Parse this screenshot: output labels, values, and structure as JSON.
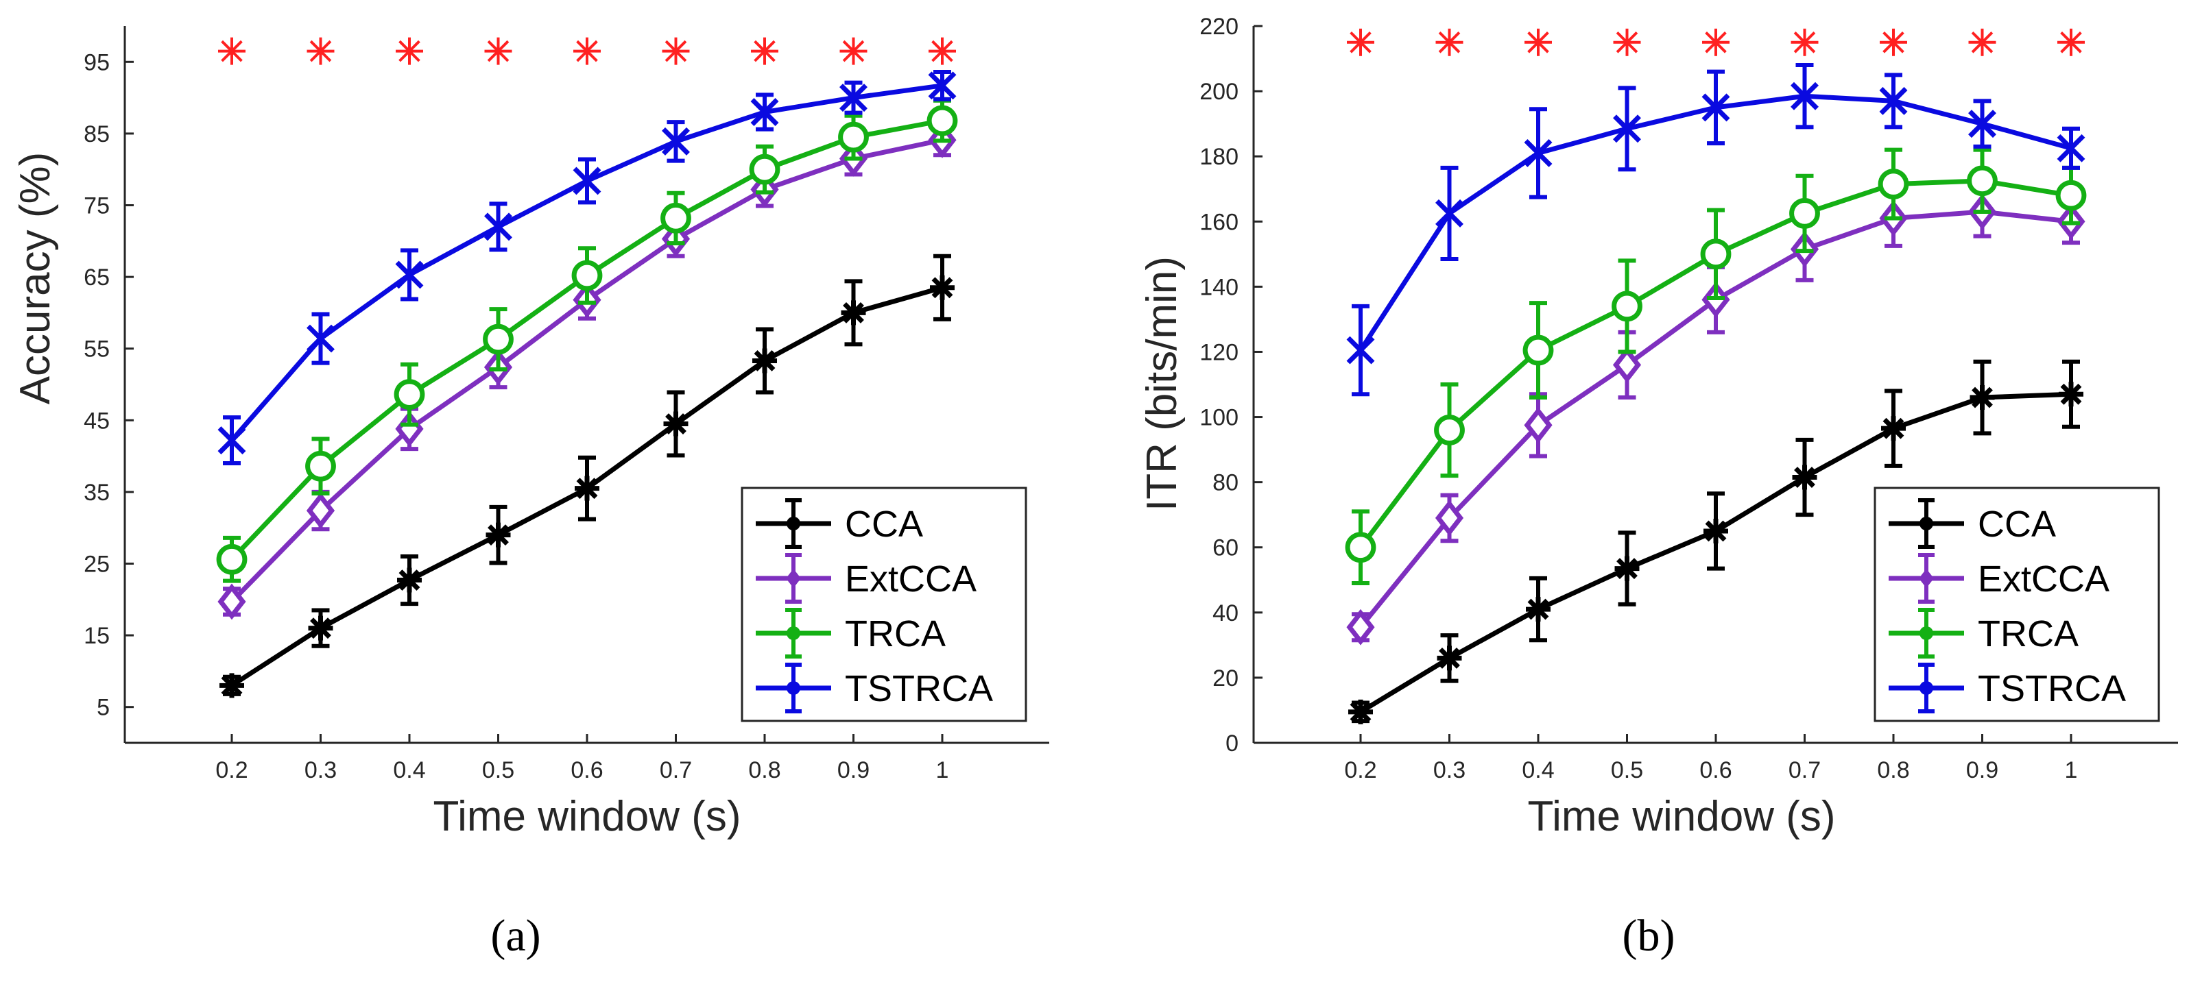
{
  "chart_data": [
    {
      "type": "line",
      "panel_label": "(a)",
      "xlabel": "Time window (s)",
      "ylabel": "Accuracy (%)",
      "x": [
        0.2,
        0.3,
        0.4,
        0.5,
        0.6,
        0.7,
        0.8,
        0.9,
        1.0
      ],
      "xticks": [
        "0.2",
        "0.3",
        "0.4",
        "0.5",
        "0.6",
        "0.7",
        "0.8",
        "0.9",
        "1"
      ],
      "ylim": [
        0,
        100
      ],
      "yticks": [
        "5",
        "15",
        "25",
        "35",
        "45",
        "55",
        "65",
        "75",
        "85",
        "95"
      ],
      "significance_marker": "*",
      "significance_y": 96.5,
      "legend": {
        "position": "bottom-right"
      },
      "series": [
        {
          "name": "CCA",
          "color": "#000000",
          "marker": "asterisk",
          "values": [
            8.0,
            16.0,
            22.7,
            29.0,
            35.5,
            44.5,
            53.3,
            60.0,
            63.5
          ],
          "errors": [
            1.2,
            2.5,
            3.3,
            3.9,
            4.3,
            4.4,
            4.4,
            4.4,
            4.4
          ]
        },
        {
          "name": "ExtCCA",
          "color": "#7e2fbf",
          "marker": "diamond",
          "values": [
            19.7,
            32.4,
            43.8,
            52.4,
            61.8,
            70.3,
            77.2,
            81.5,
            84.1
          ],
          "errors": [
            1.8,
            2.6,
            2.8,
            2.8,
            2.6,
            2.4,
            2.3,
            2.2,
            2.1
          ]
        },
        {
          "name": "TRCA",
          "color": "#14b014",
          "marker": "circle",
          "values": [
            25.6,
            38.6,
            48.6,
            56.3,
            65.2,
            73.2,
            80.0,
            84.5,
            86.8
          ],
          "errors": [
            3.0,
            3.8,
            4.2,
            4.2,
            3.8,
            3.5,
            3.2,
            3.0,
            2.8
          ]
        },
        {
          "name": "TSTRCA",
          "color": "#0a0ae0",
          "marker": "x",
          "values": [
            42.2,
            56.4,
            65.3,
            72.0,
            78.4,
            83.9,
            88.0,
            90.0,
            91.7
          ],
          "errors": [
            3.2,
            3.4,
            3.4,
            3.2,
            3.0,
            2.7,
            2.4,
            2.1,
            1.9
          ]
        }
      ]
    },
    {
      "type": "line",
      "panel_label": "(b)",
      "xlabel": "Time window (s)",
      "ylabel": "ITR (bits/min)",
      "x": [
        0.2,
        0.3,
        0.4,
        0.5,
        0.6,
        0.7,
        0.8,
        0.9,
        1.0
      ],
      "xticks": [
        "0.2",
        "0.3",
        "0.4",
        "0.5",
        "0.6",
        "0.7",
        "0.8",
        "0.9",
        "1"
      ],
      "ylim": [
        0,
        220
      ],
      "yticks": [
        "0",
        "20",
        "40",
        "60",
        "80",
        "100",
        "120",
        "140",
        "160",
        "180",
        "200",
        "220"
      ],
      "significance_marker": "*",
      "significance_y": 215,
      "legend": {
        "position": "bottom-right"
      },
      "series": [
        {
          "name": "CCA",
          "color": "#000000",
          "marker": "asterisk",
          "values": [
            9.5,
            26.0,
            41.0,
            53.5,
            65.0,
            81.5,
            96.5,
            106.0,
            107.0
          ],
          "errors": [
            2.8,
            7.0,
            9.5,
            11.0,
            11.5,
            11.5,
            11.5,
            11.0,
            10.0
          ]
        },
        {
          "name": "ExtCCA",
          "color": "#7e2fbf",
          "marker": "diamond",
          "values": [
            35.5,
            69.0,
            97.5,
            116.0,
            136.0,
            151.5,
            161.0,
            163.0,
            160.0
          ],
          "errors": [
            4.0,
            7.0,
            9.5,
            10.0,
            10.0,
            9.5,
            8.5,
            7.5,
            6.5
          ]
        },
        {
          "name": "TRCA",
          "color": "#14b014",
          "marker": "circle",
          "values": [
            60.0,
            96.0,
            120.5,
            134.0,
            150.0,
            162.5,
            171.5,
            172.5,
            168.0
          ],
          "errors": [
            11.0,
            14.0,
            14.5,
            14.0,
            13.5,
            11.5,
            10.5,
            9.5,
            8.5
          ]
        },
        {
          "name": "TSTRCA",
          "color": "#0a0ae0",
          "marker": "x",
          "values": [
            120.5,
            162.5,
            181.0,
            188.5,
            195.0,
            198.5,
            197.0,
            190.0,
            182.5
          ],
          "errors": [
            13.5,
            14.0,
            13.5,
            12.5,
            11.0,
            9.5,
            8.0,
            7.0,
            6.0
          ]
        }
      ]
    }
  ]
}
